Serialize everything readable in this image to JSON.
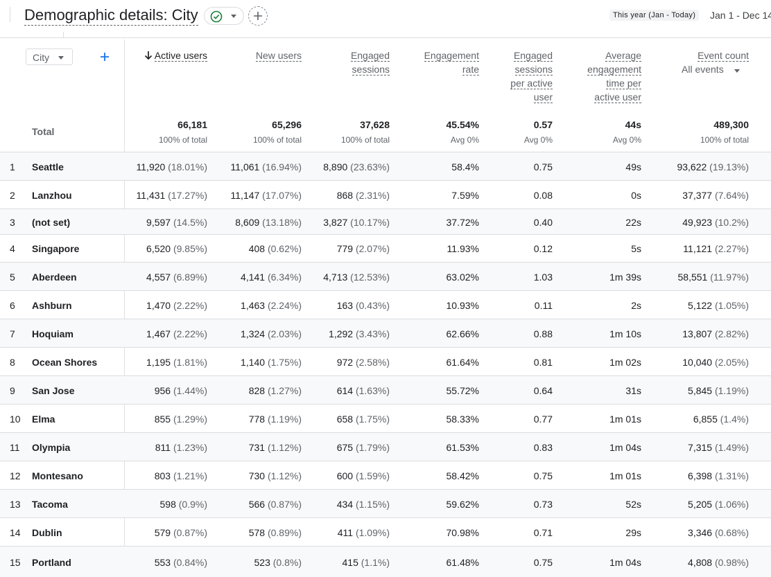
{
  "header": {
    "title": "Demographic details: City",
    "date_label": "This year (Jan - Today)",
    "date_range": "Jan 1 - Dec 14"
  },
  "table": {
    "dimension_select": "City",
    "event_select": "All events",
    "total_label": "Total",
    "columns": [
      {
        "key": "active_users",
        "label_lines": [
          "Active users"
        ],
        "sorted": true,
        "total": "66,181",
        "total_sub": "100% of total"
      },
      {
        "key": "new_users",
        "label_lines": [
          "New users"
        ],
        "total": "65,296",
        "total_sub": "100% of total"
      },
      {
        "key": "engaged_sessions",
        "label_lines": [
          "Engaged",
          "sessions"
        ],
        "total": "37,628",
        "total_sub": "100% of total"
      },
      {
        "key": "engagement_rate",
        "label_lines": [
          "Engagement",
          "rate"
        ],
        "total": "45.54%",
        "total_sub": "Avg 0%"
      },
      {
        "key": "sessions_per_user",
        "label_lines": [
          "Engaged",
          "sessions",
          "per active",
          "user"
        ],
        "total": "0.57",
        "total_sub": "Avg 0%"
      },
      {
        "key": "avg_time",
        "label_lines": [
          "Average",
          "engagement",
          "time per",
          "active user"
        ],
        "total": "44s",
        "total_sub": "Avg 0%"
      },
      {
        "key": "event_count",
        "label_lines": [
          "Event count"
        ],
        "total": "489,300",
        "total_sub": "100% of total"
      }
    ],
    "rows": [
      {
        "n": "1",
        "city": "Seattle",
        "au": "11,920",
        "au_pct": "(18.01%)",
        "nu": "11,061",
        "nu_pct": "(16.94%)",
        "es": "8,890",
        "es_pct": "(23.63%)",
        "er": "58.4%",
        "spu": "0.75",
        "at": "49s",
        "ec": "93,622",
        "ec_pct": "(19.13%)"
      },
      {
        "n": "2",
        "city": "Lanzhou",
        "au": "11,431",
        "au_pct": "(17.27%)",
        "nu": "11,147",
        "nu_pct": "(17.07%)",
        "es": "868",
        "es_pct": "(2.31%)",
        "er": "7.59%",
        "spu": "0.08",
        "at": "0s",
        "ec": "37,377",
        "ec_pct": "(7.64%)"
      },
      {
        "n": "3",
        "city": "(not set)",
        "au": "9,597",
        "au_pct": "(14.5%)",
        "nu": "8,609",
        "nu_pct": "(13.18%)",
        "es": "3,827",
        "es_pct": "(10.17%)",
        "er": "37.72%",
        "spu": "0.40",
        "at": "22s",
        "ec": "49,923",
        "ec_pct": "(10.2%)"
      },
      {
        "n": "4",
        "city": "Singapore",
        "au": "6,520",
        "au_pct": "(9.85%)",
        "nu": "408",
        "nu_pct": "(0.62%)",
        "es": "779",
        "es_pct": "(2.07%)",
        "er": "11.93%",
        "spu": "0.12",
        "at": "5s",
        "ec": "11,121",
        "ec_pct": "(2.27%)"
      },
      {
        "n": "5",
        "city": "Aberdeen",
        "au": "4,557",
        "au_pct": "(6.89%)",
        "nu": "4,141",
        "nu_pct": "(6.34%)",
        "es": "4,713",
        "es_pct": "(12.53%)",
        "er": "63.02%",
        "spu": "1.03",
        "at": "1m 39s",
        "ec": "58,551",
        "ec_pct": "(11.97%)"
      },
      {
        "n": "6",
        "city": "Ashburn",
        "au": "1,470",
        "au_pct": "(2.22%)",
        "nu": "1,463",
        "nu_pct": "(2.24%)",
        "es": "163",
        "es_pct": "(0.43%)",
        "er": "10.93%",
        "spu": "0.11",
        "at": "2s",
        "ec": "5,122",
        "ec_pct": "(1.05%)"
      },
      {
        "n": "7",
        "city": "Hoquiam",
        "au": "1,467",
        "au_pct": "(2.22%)",
        "nu": "1,324",
        "nu_pct": "(2.03%)",
        "es": "1,292",
        "es_pct": "(3.43%)",
        "er": "62.66%",
        "spu": "0.88",
        "at": "1m 10s",
        "ec": "13,807",
        "ec_pct": "(2.82%)"
      },
      {
        "n": "8",
        "city": "Ocean Shores",
        "au": "1,195",
        "au_pct": "(1.81%)",
        "nu": "1,140",
        "nu_pct": "(1.75%)",
        "es": "972",
        "es_pct": "(2.58%)",
        "er": "61.64%",
        "spu": "0.81",
        "at": "1m 02s",
        "ec": "10,040",
        "ec_pct": "(2.05%)"
      },
      {
        "n": "9",
        "city": "San Jose",
        "au": "956",
        "au_pct": "(1.44%)",
        "nu": "828",
        "nu_pct": "(1.27%)",
        "es": "614",
        "es_pct": "(1.63%)",
        "er": "55.72%",
        "spu": "0.64",
        "at": "31s",
        "ec": "5,845",
        "ec_pct": "(1.19%)"
      },
      {
        "n": "10",
        "city": "Elma",
        "au": "855",
        "au_pct": "(1.29%)",
        "nu": "778",
        "nu_pct": "(1.19%)",
        "es": "658",
        "es_pct": "(1.75%)",
        "er": "58.33%",
        "spu": "0.77",
        "at": "1m 01s",
        "ec": "6,855",
        "ec_pct": "(1.4%)"
      },
      {
        "n": "11",
        "city": "Olympia",
        "au": "811",
        "au_pct": "(1.23%)",
        "nu": "731",
        "nu_pct": "(1.12%)",
        "es": "675",
        "es_pct": "(1.79%)",
        "er": "61.53%",
        "spu": "0.83",
        "at": "1m 04s",
        "ec": "7,315",
        "ec_pct": "(1.49%)"
      },
      {
        "n": "12",
        "city": "Montesano",
        "au": "803",
        "au_pct": "(1.21%)",
        "nu": "730",
        "nu_pct": "(1.12%)",
        "es": "600",
        "es_pct": "(1.59%)",
        "er": "58.42%",
        "spu": "0.75",
        "at": "1m 01s",
        "ec": "6,398",
        "ec_pct": "(1.31%)"
      },
      {
        "n": "13",
        "city": "Tacoma",
        "au": "598",
        "au_pct": "(0.9%)",
        "nu": "566",
        "nu_pct": "(0.87%)",
        "es": "434",
        "es_pct": "(1.15%)",
        "er": "59.62%",
        "spu": "0.73",
        "at": "52s",
        "ec": "5,205",
        "ec_pct": "(1.06%)"
      },
      {
        "n": "14",
        "city": "Dublin",
        "au": "579",
        "au_pct": "(0.87%)",
        "nu": "578",
        "nu_pct": "(0.89%)",
        "es": "411",
        "es_pct": "(1.09%)",
        "er": "70.98%",
        "spu": "0.71",
        "at": "29s",
        "ec": "3,346",
        "ec_pct": "(0.68%)"
      },
      {
        "n": "15",
        "city": "Portland",
        "au": "553",
        "au_pct": "(0.84%)",
        "nu": "523",
        "nu_pct": "(0.8%)",
        "es": "415",
        "es_pct": "(1.1%)",
        "er": "61.48%",
        "spu": "0.75",
        "at": "1m 04s",
        "ec": "4,808",
        "ec_pct": "(0.98%)"
      }
    ]
  }
}
